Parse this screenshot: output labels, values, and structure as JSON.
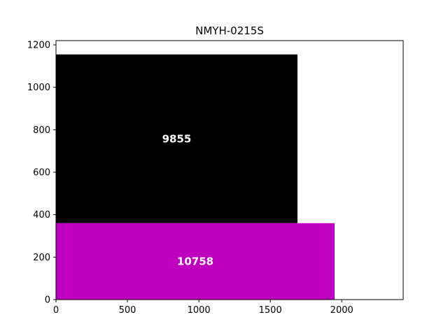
{
  "chart_data": {
    "type": "bar",
    "orientation": "stacked-rectangles",
    "title": "NMYH-0215S",
    "xlabel": "",
    "ylabel": "",
    "xlim": [
      0,
      2430
    ],
    "ylim": [
      0,
      1220
    ],
    "xticks": [
      0,
      500,
      1000,
      1500,
      2000
    ],
    "yticks": [
      0,
      200,
      400,
      600,
      800,
      1000,
      1200
    ],
    "grid": false,
    "rects": [
      {
        "x0": 0,
        "x1": 1690,
        "y0": 360,
        "y1": 1155,
        "label": "9855",
        "color": "#000000"
      },
      {
        "x0": 0,
        "x1": 1950,
        "y0": 0,
        "y1": 360,
        "label": "10758",
        "color": "#bf00bf"
      }
    ]
  }
}
